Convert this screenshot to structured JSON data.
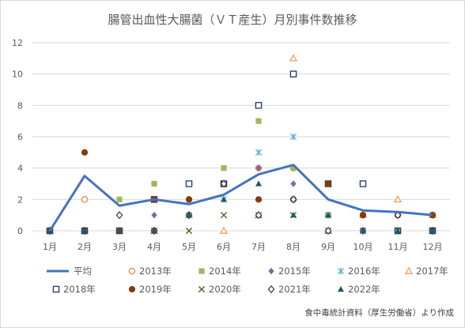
{
  "chart_data": {
    "type": "scatter",
    "title": "腸管出血性大腸菌（ＶＴ産生）月別事件数推移",
    "source": "食中毒統計資料（厚生労働省）より作成",
    "categories": [
      "1月",
      "2月",
      "3月",
      "4月",
      "5月",
      "6月",
      "7月",
      "8月",
      "9月",
      "10月",
      "11月",
      "12月"
    ],
    "ylim": [
      0,
      12
    ],
    "yticks": [
      0,
      2,
      4,
      6,
      8,
      10,
      12
    ],
    "grid": true,
    "legend_position": "bottom",
    "series": [
      {
        "name": "平均",
        "kind": "line",
        "marker": "none",
        "color": "#4472c4",
        "values": [
          0,
          3.5,
          1.6,
          2.0,
          1.7,
          2.3,
          3.6,
          4.2,
          2.0,
          1.3,
          1.2,
          1.0
        ]
      },
      {
        "name": "2013年",
        "kind": "scatter",
        "marker": "circle-open",
        "color": "#ed7d31",
        "values": [
          0,
          2,
          0,
          0,
          2,
          3,
          4,
          4,
          1,
          1,
          1,
          1
        ]
      },
      {
        "name": "2014年",
        "kind": "scatter",
        "marker": "square-filled",
        "color": "#9bbb59",
        "values": [
          0,
          0,
          2,
          3,
          1,
          4,
          7,
          4,
          1,
          1,
          0,
          1
        ]
      },
      {
        "name": "2015年",
        "kind": "scatter",
        "marker": "diamond-filled",
        "color": "#8064a2",
        "values": [
          0,
          0,
          1,
          1,
          1,
          3,
          4,
          3,
          0,
          0,
          1,
          1
        ]
      },
      {
        "name": "2016年",
        "kind": "scatter",
        "marker": "star",
        "color": "#4bacc6",
        "values": [
          0,
          0,
          0,
          0,
          1,
          2,
          5,
          6,
          1,
          0,
          0,
          0
        ]
      },
      {
        "name": "2017年",
        "kind": "scatter",
        "marker": "triangle-open",
        "color": "#f79646",
        "values": [
          0,
          0,
          0,
          0,
          1,
          0,
          1,
          11,
          0,
          1,
          2,
          1
        ]
      },
      {
        "name": "2018年",
        "kind": "scatter",
        "marker": "square-open",
        "color": "#1f3864",
        "values": [
          0,
          0,
          0,
          2,
          3,
          3,
          8,
          10,
          3,
          3,
          0,
          0
        ]
      },
      {
        "name": "2019年",
        "kind": "scatter",
        "marker": "circle-filled",
        "color": "#843c0c",
        "values": [
          0,
          5,
          0,
          2,
          2,
          3,
          2,
          2,
          3,
          1,
          1,
          1
        ]
      },
      {
        "name": "2020年",
        "kind": "scatter",
        "marker": "x",
        "color": "#4f6228",
        "values": [
          0,
          0,
          0,
          0,
          0,
          1,
          1,
          1,
          0,
          0,
          0,
          0
        ]
      },
      {
        "name": "2021年",
        "kind": "scatter",
        "marker": "diamond-open",
        "color": "#3f3151",
        "values": [
          0,
          0,
          1,
          0,
          1,
          3,
          1,
          2,
          0,
          0,
          1,
          0
        ]
      },
      {
        "name": "2022年",
        "kind": "scatter",
        "marker": "triangle-filled",
        "color": "#215868",
        "values": [
          0,
          0,
          0,
          0,
          1,
          2,
          3,
          1,
          1,
          0,
          0,
          0
        ]
      }
    ]
  }
}
